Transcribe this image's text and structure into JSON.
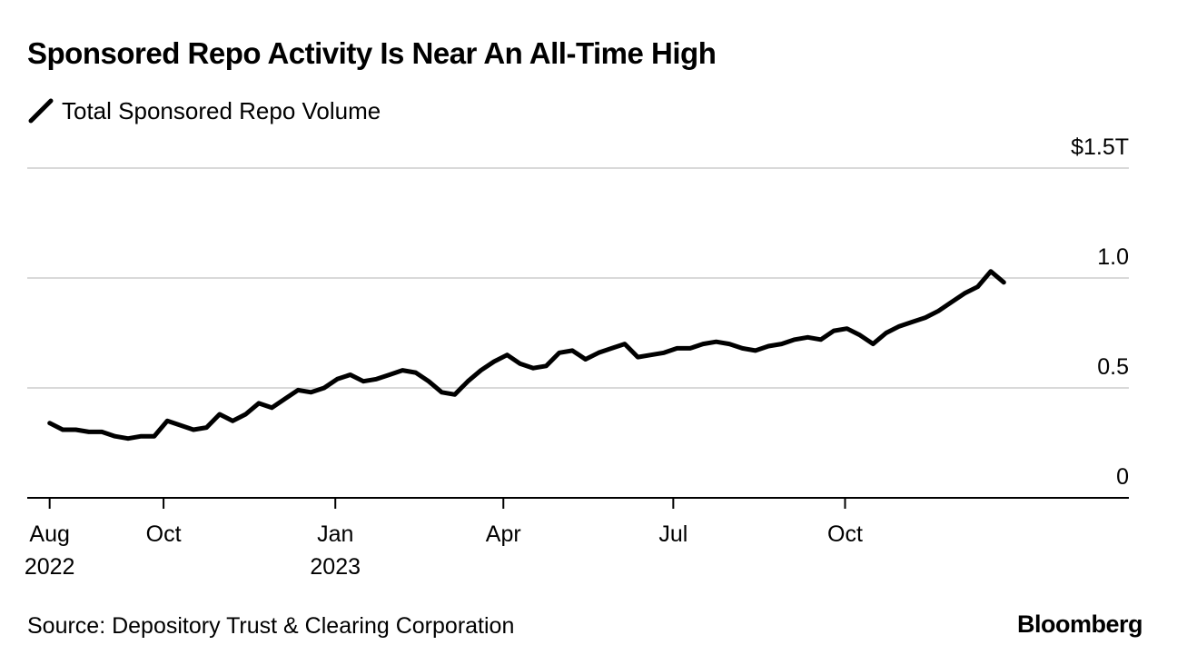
{
  "chart_data": {
    "type": "line",
    "title": "Sponsored Repo Activity Is Near An All-Time High",
    "series": [
      {
        "name": "Total Sponsored Repo Volume",
        "color": "#000000",
        "x": [
          "2022-08-01",
          "2022-08-08",
          "2022-08-15",
          "2022-08-22",
          "2022-08-29",
          "2022-09-05",
          "2022-09-12",
          "2022-09-19",
          "2022-09-26",
          "2022-10-03",
          "2022-10-10",
          "2022-10-17",
          "2022-10-24",
          "2022-10-31",
          "2022-11-07",
          "2022-11-14",
          "2022-11-21",
          "2022-11-28",
          "2022-12-05",
          "2022-12-12",
          "2022-12-19",
          "2022-12-26",
          "2023-01-02",
          "2023-01-09",
          "2023-01-16",
          "2023-01-23",
          "2023-01-30",
          "2023-02-06",
          "2023-02-13",
          "2023-02-20",
          "2023-02-27",
          "2023-03-06",
          "2023-03-13",
          "2023-03-20",
          "2023-03-27",
          "2023-04-03",
          "2023-04-10",
          "2023-04-17",
          "2023-04-24",
          "2023-05-01",
          "2023-05-08",
          "2023-05-15",
          "2023-05-22",
          "2023-05-29",
          "2023-06-05",
          "2023-06-12",
          "2023-06-19",
          "2023-06-26",
          "2023-07-03",
          "2023-07-10",
          "2023-07-17",
          "2023-07-24",
          "2023-07-31",
          "2023-08-07",
          "2023-08-14",
          "2023-08-21",
          "2023-08-28",
          "2023-09-04",
          "2023-09-11",
          "2023-09-18",
          "2023-09-25",
          "2023-10-02",
          "2023-10-09",
          "2023-10-16",
          "2023-10-23",
          "2023-10-30",
          "2023-11-06",
          "2023-11-13",
          "2023-11-20",
          "2023-11-27",
          "2023-12-04",
          "2023-12-11",
          "2023-12-18",
          "2023-12-25"
        ],
        "values": [
          0.34,
          0.31,
          0.31,
          0.3,
          0.3,
          0.28,
          0.27,
          0.28,
          0.28,
          0.35,
          0.33,
          0.31,
          0.32,
          0.38,
          0.35,
          0.38,
          0.43,
          0.41,
          0.45,
          0.49,
          0.48,
          0.5,
          0.54,
          0.56,
          0.53,
          0.54,
          0.56,
          0.58,
          0.57,
          0.53,
          0.48,
          0.47,
          0.53,
          0.58,
          0.62,
          0.65,
          0.61,
          0.59,
          0.6,
          0.66,
          0.67,
          0.63,
          0.66,
          0.68,
          0.7,
          0.64,
          0.65,
          0.66,
          0.68,
          0.68,
          0.7,
          0.71,
          0.7,
          0.68,
          0.67,
          0.69,
          0.7,
          0.72,
          0.73,
          0.72,
          0.76,
          0.77,
          0.74,
          0.7,
          0.75,
          0.78,
          0.8,
          0.82,
          0.85,
          0.89,
          0.93,
          0.96,
          1.03,
          0.98
        ]
      }
    ],
    "yticks": [
      {
        "value": 0,
        "label": "0"
      },
      {
        "value": 0.5,
        "label": "0.5"
      },
      {
        "value": 1.0,
        "label": "1.0"
      },
      {
        "value": 1.5,
        "label": "$1.5T"
      }
    ],
    "xticks": [
      {
        "date": "2022-08-01",
        "label": "Aug",
        "sublabel": "2022"
      },
      {
        "date": "2022-10-01",
        "label": "Oct",
        "sublabel": ""
      },
      {
        "date": "2023-01-01",
        "label": "Jan",
        "sublabel": "2023"
      },
      {
        "date": "2023-04-01",
        "label": "Apr",
        "sublabel": ""
      },
      {
        "date": "2023-07-01",
        "label": "Jul",
        "sublabel": ""
      },
      {
        "date": "2023-10-01",
        "label": "Oct",
        "sublabel": ""
      }
    ],
    "xlim": [
      "2022-07-20",
      "2024-03-01"
    ],
    "ylim": [
      0,
      1.5
    ],
    "ylabel": "",
    "xlabel": "",
    "grid": true,
    "legend": "top-left",
    "colors": {
      "line": "#000000",
      "grid": "#d9d9d9",
      "axis": "#000000"
    }
  },
  "footer": {
    "source": "Source: Depository Trust & Clearing Corporation",
    "brand": "Bloomberg"
  }
}
